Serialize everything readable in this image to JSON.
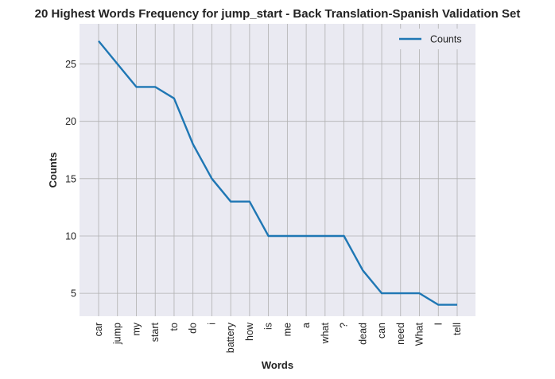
{
  "chart_data": {
    "type": "line",
    "title": "20 Highest Words Frequency for jump_start - Back Translation-Spanish Validation Set",
    "xlabel": "Words",
    "ylabel": "Counts",
    "categories": [
      "car",
      "jump",
      "my",
      "start",
      "to",
      "do",
      "i",
      "battery",
      "how",
      "is",
      "me",
      "a",
      "what",
      "?",
      "dead",
      "can",
      "need",
      "What",
      "I",
      "tell"
    ],
    "series": [
      {
        "name": "Counts",
        "values": [
          27,
          25,
          23,
          23,
          22,
          18,
          15,
          13,
          13,
          10,
          10,
          10,
          10,
          10,
          7,
          5,
          5,
          5,
          4,
          4
        ]
      }
    ],
    "ylim": [
      3,
      28.5
    ],
    "yticks": [
      5,
      10,
      15,
      20,
      25
    ],
    "grid": true,
    "legend": "top-right",
    "colors": {
      "series": "#1f77b4",
      "background": "#eaeaf2",
      "grid": "#b0b0b0"
    }
  }
}
